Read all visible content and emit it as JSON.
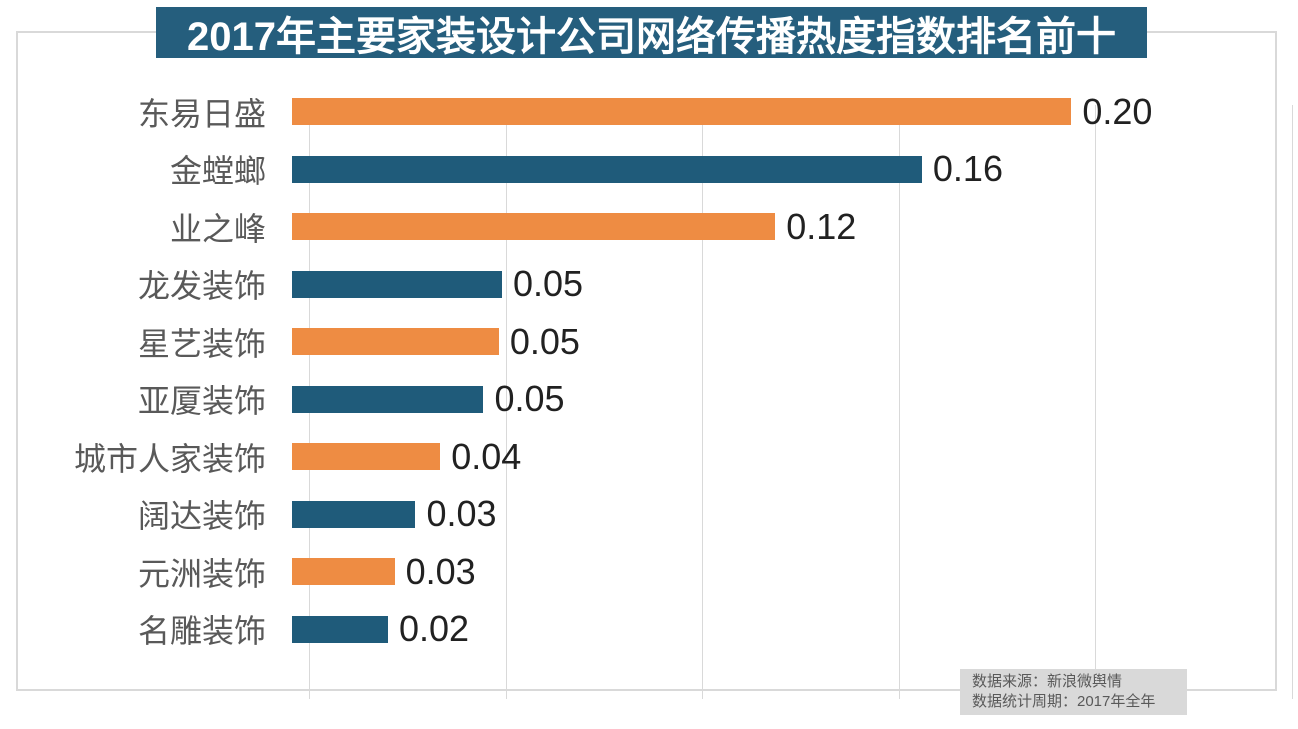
{
  "header": {
    "title": "2017年主要家装设计公司网络传播热度指数排名前十"
  },
  "source_box": {
    "line1": "数据来源：新浪微舆情",
    "line2": "数据统计周期：2017年全年"
  },
  "colors": {
    "orange": "#ee8c43",
    "blue": "#1f5b7a",
    "banner": "#255e7d",
    "gridline": "#d9d9d9",
    "border": "#d9d9d9",
    "label": "#595959",
    "value": "#212121",
    "source_bg": "#d9d9d9",
    "source_text": "#595959"
  },
  "chart_data": {
    "type": "bar",
    "orientation": "horizontal",
    "title": "2017年主要家装设计公司网络传播热度指数排名前十",
    "xlabel": "",
    "ylabel": "",
    "categories": [
      "东易日盛",
      "金螳螂",
      "业之峰",
      "龙发装饰",
      "星艺装饰",
      "亚厦装饰",
      "城市人家装饰",
      "阔达装饰",
      "元洲装饰",
      "名雕装饰"
    ],
    "values": [
      0.2,
      0.16,
      0.12,
      0.05,
      0.05,
      0.05,
      0.04,
      0.03,
      0.03,
      0.02
    ],
    "value_labels": [
      "0.20",
      "0.16",
      "0.12",
      "0.05",
      "0.05",
      "0.05",
      "0.04",
      "0.03",
      "0.03",
      "0.02"
    ],
    "raw_values": [
      0.1982,
      0.1602,
      0.1229,
      0.0534,
      0.0526,
      0.0487,
      0.0377,
      0.0314,
      0.0261,
      0.0244
    ],
    "bar_colors": [
      "orange",
      "blue",
      "orange",
      "blue",
      "orange",
      "blue",
      "orange",
      "blue",
      "orange",
      "blue"
    ],
    "xlim": [
      0,
      0.25
    ],
    "gridline_step": 0.05,
    "grid": "vertical-only",
    "x_tick_labels": "none",
    "legend": "none",
    "data_labels": "outside-end"
  }
}
